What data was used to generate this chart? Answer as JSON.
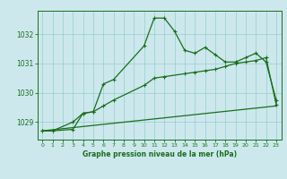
{
  "title": "Graphe pression niveau de la mer (hPa)",
  "background_color": "#cce8ed",
  "grid_color": "#99cccc",
  "line_color": "#1a6e1a",
  "xlim": [
    -0.5,
    23.5
  ],
  "ylim": [
    1028.4,
    1032.8
  ],
  "yticks": [
    1029,
    1030,
    1031,
    1032
  ],
  "xticks": [
    0,
    1,
    2,
    3,
    4,
    5,
    6,
    7,
    8,
    9,
    10,
    11,
    12,
    13,
    14,
    15,
    16,
    17,
    18,
    19,
    20,
    21,
    22,
    23
  ],
  "series1_x": [
    0,
    1,
    3,
    4,
    5,
    6,
    7,
    10,
    11,
    12,
    13,
    14,
    15,
    16,
    17,
    18,
    19,
    20,
    21,
    22,
    23
  ],
  "series1_y": [
    1028.7,
    1028.7,
    1029.0,
    1029.3,
    1029.35,
    1030.3,
    1030.45,
    1031.6,
    1032.55,
    1032.55,
    1032.1,
    1031.45,
    1031.35,
    1031.55,
    1031.3,
    1031.05,
    1031.05,
    1031.2,
    1031.35,
    1031.05,
    1029.75
  ],
  "series2_x": [
    0,
    1,
    3,
    4,
    5,
    6,
    7,
    10,
    11,
    12,
    14,
    15,
    16,
    17,
    18,
    19,
    20,
    21,
    22,
    23
  ],
  "series2_y": [
    1028.7,
    1028.7,
    1028.75,
    1029.3,
    1029.35,
    1029.55,
    1029.75,
    1030.25,
    1030.5,
    1030.55,
    1030.65,
    1030.7,
    1030.75,
    1030.8,
    1030.9,
    1031.0,
    1031.05,
    1031.1,
    1031.2,
    1029.6
  ],
  "series3_x": [
    0,
    23
  ],
  "series3_y": [
    1028.7,
    1029.55
  ]
}
